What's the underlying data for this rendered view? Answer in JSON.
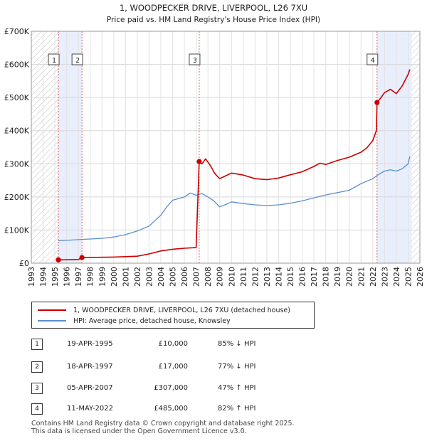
{
  "chart_data": {
    "type": "line",
    "title": "1, WOODPECKER DRIVE, LIVERPOOL, L26 7XU",
    "subtitle": "Price paid vs. HM Land Registry's House Price Index (HPI)",
    "xlim": [
      1993,
      2026
    ],
    "ylim": [
      0,
      700000
    ],
    "y_ticks": [
      0,
      100000,
      200000,
      300000,
      400000,
      500000,
      600000,
      700000
    ],
    "y_tick_labels": [
      "£0",
      "£100K",
      "£200K",
      "£300K",
      "£400K",
      "£500K",
      "£600K",
      "£700K"
    ],
    "x_ticks": [
      1993,
      1994,
      1995,
      1996,
      1997,
      1998,
      1999,
      2000,
      2001,
      2002,
      2003,
      2004,
      2005,
      2006,
      2007,
      2008,
      2009,
      2010,
      2011,
      2012,
      2013,
      2014,
      2015,
      2016,
      2017,
      2018,
      2019,
      2020,
      2021,
      2022,
      2023,
      2024,
      2025,
      2026
    ],
    "x_tick_labels": [
      "1993",
      "1994",
      "1995",
      "1996",
      "1997",
      "1998",
      "1999",
      "2000",
      "2001",
      "2002",
      "2003",
      "2004",
      "2005",
      "2006",
      "2007",
      "2008",
      "2009",
      "2010",
      "2011",
      "2012",
      "2013",
      "2014",
      "2015",
      "2016",
      "2017",
      "2018",
      "2019",
      "2020",
      "2021",
      "2022",
      "2023",
      "2024",
      "2025",
      "2026"
    ],
    "hatch_ranges": [
      [
        1993,
        1995.3
      ],
      [
        2025.3,
        2026
      ]
    ],
    "shade_ranges": [
      [
        1995.3,
        1997.3
      ],
      [
        2022.36,
        2025.3
      ]
    ],
    "series": [
      {
        "name": "1, WOODPECKER DRIVE, LIVERPOOL, L26 7XU (detached house)",
        "color": "#cc0000",
        "x": [
          1995.3,
          1996.0,
          1997.0,
          1997.3,
          1998.0,
          2000.0,
          2002.0,
          2003.0,
          2004.0,
          2005.0,
          2006.0,
          2007.0,
          2007.26,
          2007.5,
          2007.8,
          2008.2,
          2008.6,
          2009.0,
          2009.4,
          2010.0,
          2011.0,
          2012.0,
          2013.0,
          2014.0,
          2015.0,
          2016.0,
          2017.0,
          2017.5,
          2018.0,
          2019.0,
          2020.0,
          2021.0,
          2021.5,
          2022.0,
          2022.3,
          2022.36,
          2022.7,
          2023.0,
          2023.5,
          2024.0,
          2024.5,
          2025.0,
          2025.15
        ],
        "values": [
          10000,
          10300,
          11200,
          17000,
          17500,
          18500,
          21000,
          28000,
          37000,
          42000,
          45000,
          47000,
          307000,
          300000,
          315000,
          295000,
          270000,
          255000,
          262000,
          272000,
          266000,
          255000,
          252000,
          257000,
          267000,
          276000,
          292000,
          302000,
          298000,
          310000,
          320000,
          335000,
          348000,
          370000,
          400000,
          485000,
          500000,
          515000,
          525000,
          512000,
          535000,
          570000,
          585000
        ]
      },
      {
        "name": "HPI: Average price, detached house, Knowsley",
        "color": "#5b8fd0",
        "x": [
          1995.3,
          1996.0,
          1997.0,
          1998.0,
          1999.0,
          2000.0,
          2001.0,
          2002.0,
          2003.0,
          2004.0,
          2004.5,
          2005.0,
          2006.0,
          2006.5,
          2007.0,
          2007.5,
          2008.0,
          2008.5,
          2009.0,
          2009.5,
          2010.0,
          2011.0,
          2012.0,
          2013.0,
          2014.0,
          2015.0,
          2016.0,
          2017.0,
          2018.0,
          2019.0,
          2020.0,
          2021.0,
          2022.0,
          2022.5,
          2023.0,
          2023.5,
          2024.0,
          2024.5,
          2025.0,
          2025.15
        ],
        "values": [
          68000,
          69000,
          71000,
          73000,
          75000,
          79000,
          86000,
          97000,
          112000,
          145000,
          170000,
          190000,
          200000,
          212000,
          205000,
          210000,
          200000,
          188000,
          170000,
          177000,
          185000,
          180000,
          176000,
          174000,
          176000,
          181000,
          188000,
          197000,
          206000,
          213000,
          220000,
          240000,
          255000,
          268000,
          278000,
          282000,
          278000,
          285000,
          300000,
          322000
        ]
      }
    ],
    "sales": [
      {
        "label": "1",
        "x": 1995.3,
        "price": 10000
      },
      {
        "label": "2",
        "x": 1997.3,
        "price": 17000
      },
      {
        "label": "3",
        "x": 2007.26,
        "price": 307000
      },
      {
        "label": "4",
        "x": 2022.36,
        "price": 485000
      }
    ],
    "legend_placement": "below"
  },
  "transactions": [
    {
      "num": "1",
      "date": "19-APR-1995",
      "price": "£10,000",
      "hpi": "85% ↓ HPI"
    },
    {
      "num": "2",
      "date": "18-APR-1997",
      "price": "£17,000",
      "hpi": "77% ↓ HPI"
    },
    {
      "num": "3",
      "date": "05-APR-2007",
      "price": "£307,000",
      "hpi": "47% ↑ HPI"
    },
    {
      "num": "4",
      "date": "11-MAY-2022",
      "price": "£485,000",
      "hpi": "82% ↑ HPI"
    }
  ],
  "footer": {
    "line1": "Contains HM Land Registry data © Crown copyright and database right 2025.",
    "line2": "This data is licensed under the Open Government Licence v3.0."
  }
}
